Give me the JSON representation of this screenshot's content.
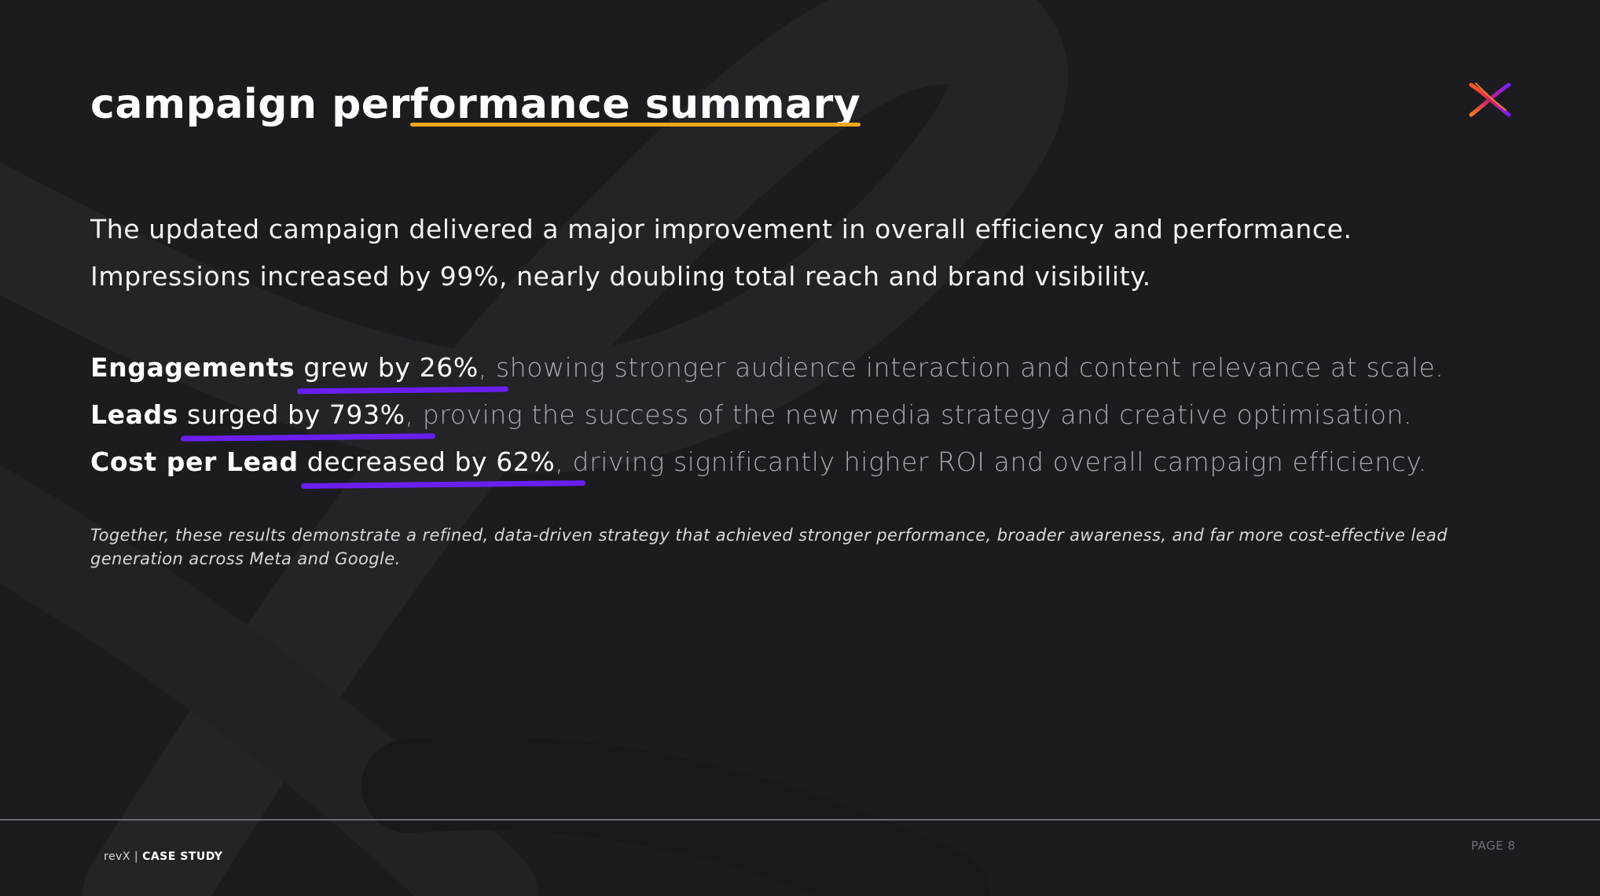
{
  "slide": {
    "title_prefix": "campaign per",
    "title_highlight": "formance summary",
    "accent_color": "#f5a61b",
    "underline_color": "#6a1ff0",
    "logo_icon": "x-brand-icon"
  },
  "intro": {
    "line1": "The updated campaign delivered a major improvement in overall efficiency and performance.",
    "line2": "Impressions increased by 99%, nearly doubling total reach and brand visibility."
  },
  "metrics": [
    {
      "label": "Engagements",
      "value": "grew by 26%",
      "rest": ", showing stronger audience interaction and content relevance at scale."
    },
    {
      "label": "Leads",
      "value": "surged by 793%",
      "rest": ", proving the success of the new media strategy and creative optimisation."
    },
    {
      "label": "Cost per Lead",
      "value": "decreased by 62%",
      "rest": ", driving significantly higher ROI and overall campaign efficiency."
    }
  ],
  "note": "Together, these results demonstrate a refined, data-driven strategy that achieved stronger performance, broader awareness, and far more cost-effective lead generation across Meta and Google.",
  "footer": {
    "brand": "revX",
    "separator": " | ",
    "section": "CASE STUDY",
    "page": "PAGE 8"
  }
}
